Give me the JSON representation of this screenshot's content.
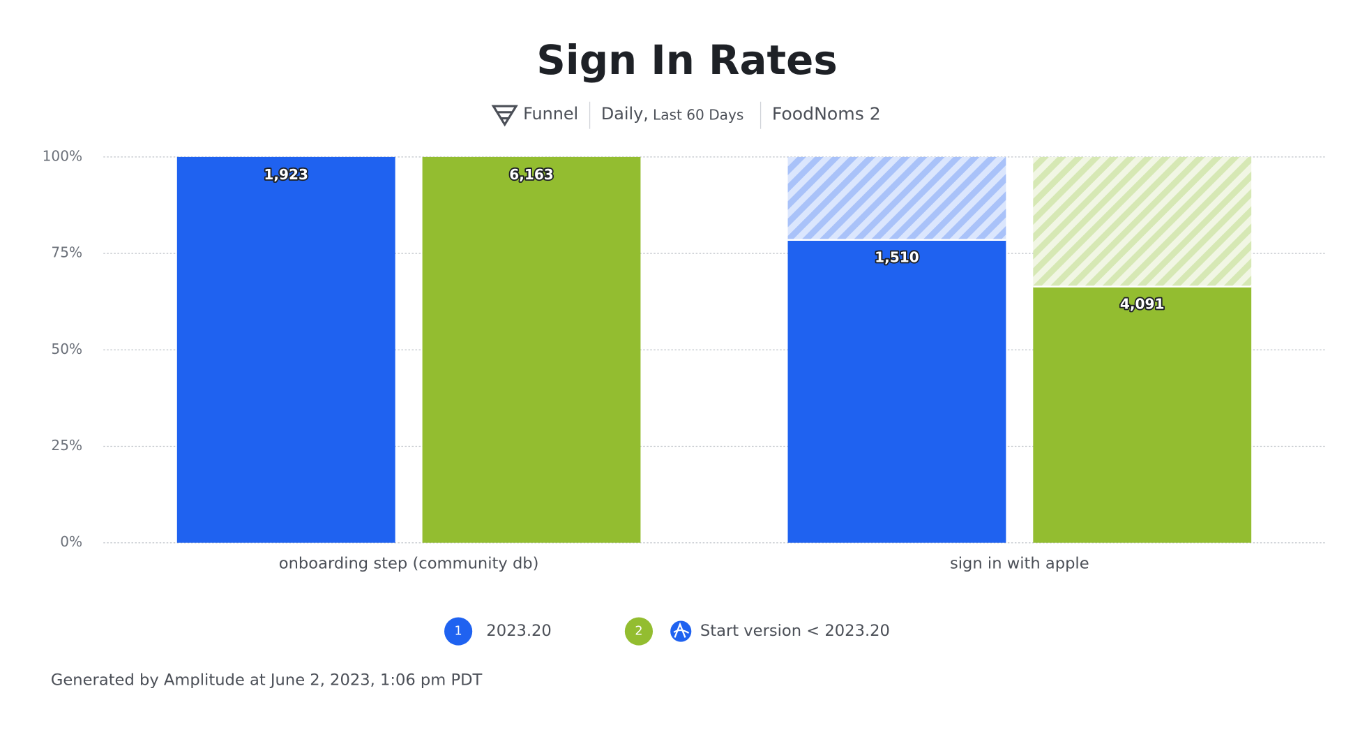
{
  "chart_data": {
    "type": "bar",
    "title": "Sign In Rates",
    "subtitle": {
      "chart_kind": "Funnel",
      "interval": "Daily,",
      "range": "Last 60 Days",
      "project": "FoodNoms 2"
    },
    "categories": [
      "onboarding step (community db)",
      "sign in with apple"
    ],
    "series": [
      {
        "name": "2023.20",
        "marker": "1",
        "color": "#1f62f0",
        "values": [
          100,
          78.5
        ],
        "count_labels": [
          "1,923",
          "1,510"
        ]
      },
      {
        "name": "Start version < 2023.20",
        "marker": "2",
        "color": "#93bd30",
        "values": [
          100,
          66.4
        ],
        "count_labels": [
          "6,163",
          "4,091"
        ]
      }
    ],
    "ylim": [
      0,
      100
    ],
    "yticks": [
      {
        "value": 0,
        "label": "0%"
      },
      {
        "value": 25,
        "label": "25%"
      },
      {
        "value": 50,
        "label": "50%"
      },
      {
        "value": 75,
        "label": "75%"
      },
      {
        "value": 100,
        "label": "100%"
      }
    ],
    "grid": true,
    "footer": "Generated by Amplitude at June 2, 2023, 1:06 pm PDT"
  }
}
